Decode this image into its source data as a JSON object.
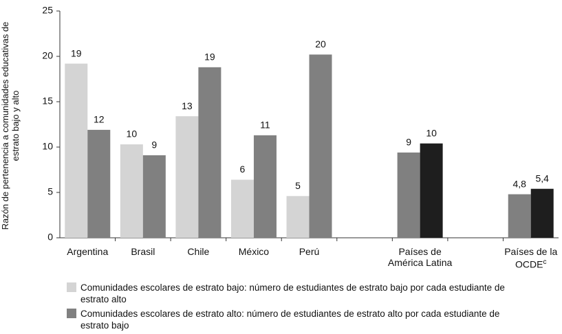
{
  "chart_data": {
    "type": "bar",
    "y_label": "Razón de pertenencia a comunidades educativas de estrato bajo y alto",
    "categories": [
      "Argentina",
      "Brasil",
      "Chile",
      "México",
      "Perú",
      null,
      "Países de América Latina",
      null,
      "Países de la OCDE"
    ],
    "category_superscripts": [
      null,
      null,
      null,
      null,
      null,
      null,
      null,
      null,
      "c"
    ],
    "series": [
      {
        "name": "Comunidades escolares de estrato bajo: número de estudiantes de estrato bajo por cada estudiante de estrato alto",
        "color": "#d4d4d4",
        "values": [
          19.2,
          10.3,
          13.4,
          6.4,
          4.6,
          null,
          null,
          null,
          null
        ],
        "value_labels": [
          "19",
          "10",
          "13",
          "6",
          "5",
          null,
          null,
          null,
          null
        ]
      },
      {
        "name": "Comunidades escolares de estrato alto: número de estudiantes de estrato alto por cada estudiante de estrato bajo",
        "color": "#808080",
        "values": [
          11.9,
          9.1,
          18.8,
          11.3,
          20.2,
          null,
          9.4,
          null,
          4.8
        ],
        "value_labels": [
          "12",
          "9",
          "19",
          "11",
          "20",
          null,
          "9",
          null,
          "4,8"
        ]
      },
      {
        "color": "#1e1e1e",
        "values": [
          null,
          null,
          null,
          null,
          null,
          null,
          10.4,
          null,
          5.4
        ],
        "value_labels": [
          null,
          null,
          null,
          null,
          null,
          null,
          "10",
          null,
          "5,4"
        ]
      }
    ],
    "ylim": [
      0,
      25
    ],
    "yticks": [
      0,
      5,
      10,
      15,
      20,
      25
    ],
    "grid": false
  }
}
